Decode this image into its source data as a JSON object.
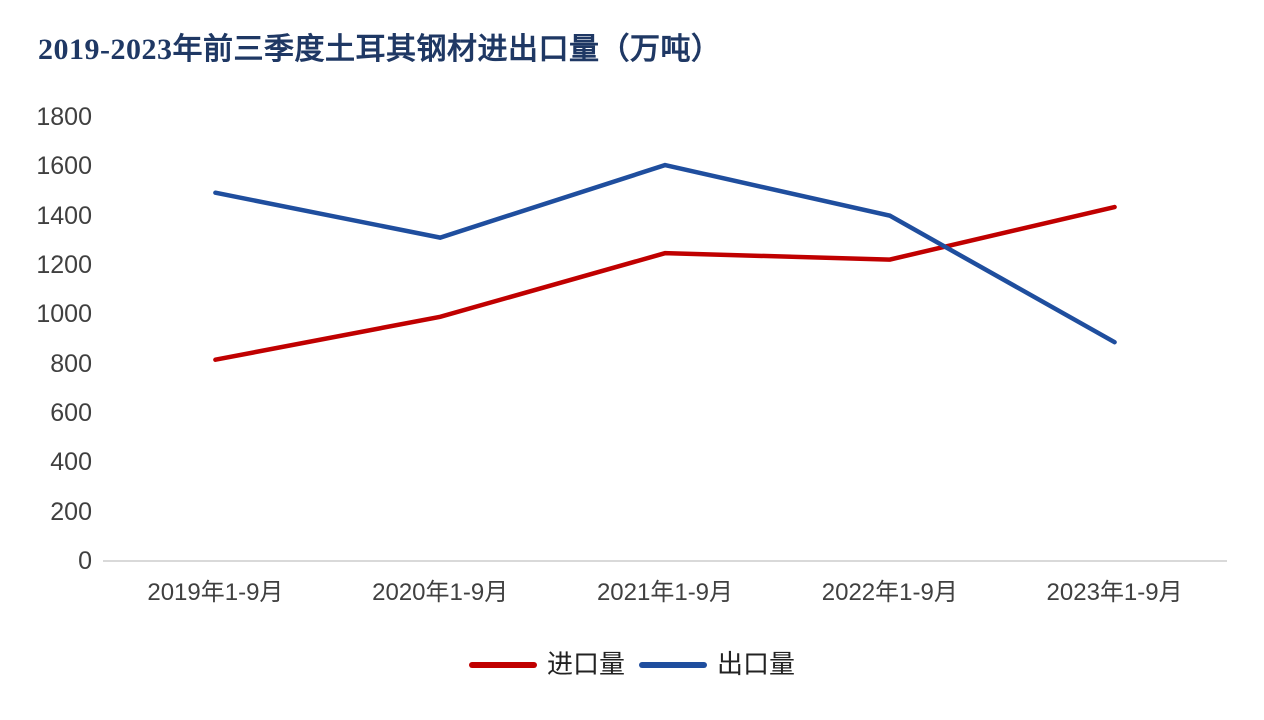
{
  "title": "2019-2023年前三季度土耳其钢材进出口量（万吨）",
  "colors": {
    "title_text": "#1F3864",
    "axis_text": "#404040",
    "axis_line": "#D9D9D9",
    "import_line": "#C00000",
    "export_line": "#1F4E9E",
    "background": "#FFFFFF"
  },
  "chart_data": {
    "type": "line",
    "title": "2019-2023年前三季度土耳其钢材进出口量（万吨）",
    "categories": [
      "2019年1-9月",
      "2020年1-9月",
      "2021年1-9月",
      "2022年1-9月",
      "2023年1-9月"
    ],
    "series": [
      {
        "name": "进口量",
        "color": "#C00000",
        "values": [
          816,
          990,
          1248,
          1222,
          1435
        ]
      },
      {
        "name": "出口量",
        "color": "#1F4E9E",
        "values": [
          1493,
          1311,
          1605,
          1400,
          887
        ]
      }
    ],
    "xlabel": "",
    "ylabel": "",
    "ylim": [
      0,
      1800
    ],
    "yticks": [
      0,
      200,
      400,
      600,
      800,
      1000,
      1200,
      1400,
      1600,
      1800
    ],
    "grid": false,
    "legend_position": "bottom"
  }
}
